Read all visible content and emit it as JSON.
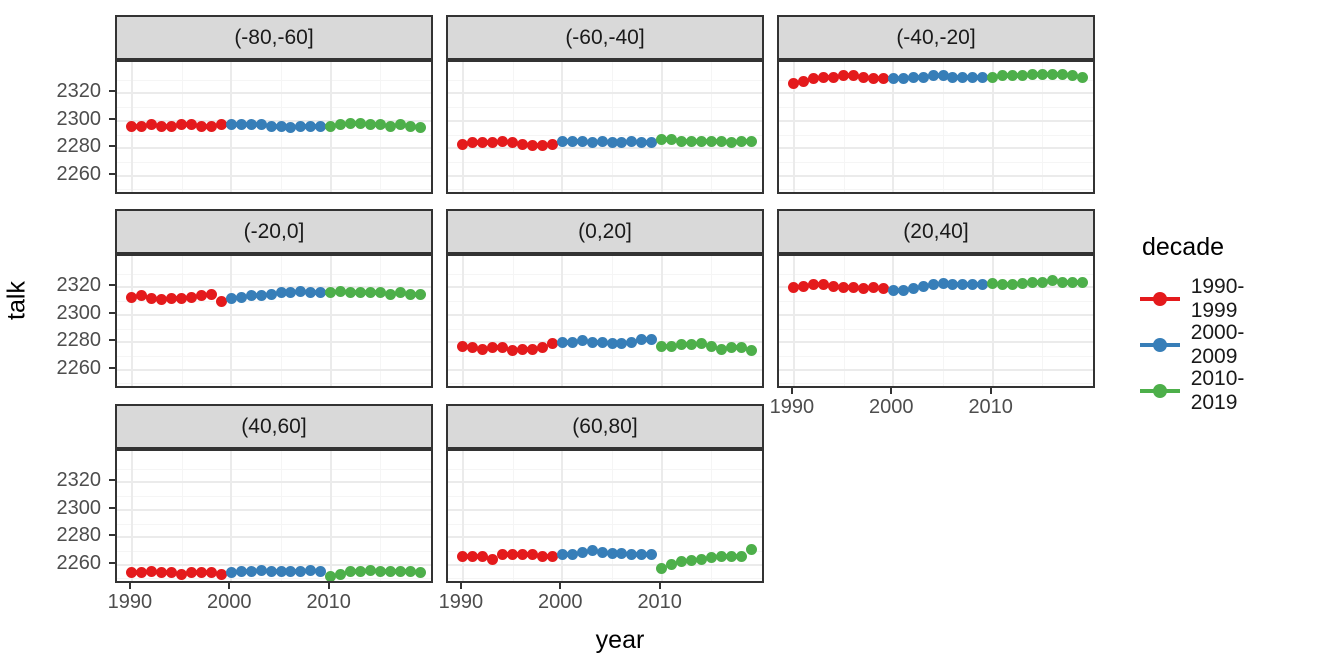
{
  "legend": {
    "title": "decade",
    "entries": [
      {
        "label": "1990-1999",
        "color": "#E41A1C"
      },
      {
        "label": "2000-2009",
        "color": "#377EB8"
      },
      {
        "label": "2010-2019",
        "color": "#4DAF4A"
      }
    ]
  },
  "chart_data": {
    "type": "scatter",
    "title": "",
    "xlabel": "year",
    "ylabel": "talk",
    "legend_position": "right",
    "grid": true,
    "x_ticks": [
      1990,
      2000,
      2010
    ],
    "x_minor_ticks": [
      1995,
      2005,
      2015
    ],
    "y_ticks": [
      2260,
      2280,
      2300,
      2320
    ],
    "y_minor_ticks": [
      2250,
      2270,
      2290,
      2310,
      2330
    ],
    "xlim": [
      1988.5,
      2020.5
    ],
    "ylim": [
      2245,
      2343
    ],
    "x_start_year": 1990,
    "series_names": [
      "1990-1999",
      "2000-2009",
      "2010-2019"
    ],
    "facets": [
      {
        "label": "(-80,-60]",
        "row": 0,
        "col": 0,
        "values": [
          2296,
          2296,
          2297,
          2296,
          2296,
          2297,
          2297,
          2296,
          2296,
          2297,
          2297,
          2297,
          2297,
          2297,
          2296,
          2296,
          2295,
          2296,
          2296,
          2296,
          2296,
          2297,
          2298,
          2298,
          2297,
          2297,
          2296,
          2297,
          2296,
          2295
        ]
      },
      {
        "label": "(-60,-40]",
        "row": 0,
        "col": 1,
        "values": [
          2283,
          2284,
          2284,
          2284,
          2285,
          2284,
          2283,
          2282,
          2282,
          2283,
          2285,
          2285,
          2285,
          2284,
          2285,
          2284,
          2284,
          2285,
          2284,
          2284,
          2286,
          2286,
          2285,
          2285,
          2285,
          2285,
          2285,
          2284,
          2285,
          2285
        ]
      },
      {
        "label": "(-40,-20]",
        "row": 0,
        "col": 2,
        "values": [
          2327,
          2329,
          2331,
          2332,
          2332,
          2333,
          2333,
          2332,
          2331,
          2331,
          2331,
          2331,
          2332,
          2332,
          2333,
          2333,
          2332,
          2332,
          2332,
          2332,
          2332,
          2333,
          2333,
          2333,
          2334,
          2334,
          2334,
          2334,
          2333,
          2332
        ]
      },
      {
        "label": "(-20,0]",
        "row": 1,
        "col": 0,
        "values": [
          2313,
          2314,
          2312,
          2311,
          2312,
          2312,
          2313,
          2314,
          2315,
          2310,
          2312,
          2313,
          2314,
          2314,
          2315,
          2316,
          2316,
          2317,
          2316,
          2316,
          2316,
          2317,
          2316,
          2316,
          2316,
          2316,
          2315,
          2316,
          2315,
          2315
        ]
      },
      {
        "label": "(0,20]",
        "row": 1,
        "col": 1,
        "values": [
          2277,
          2276,
          2275,
          2276,
          2276,
          2274,
          2275,
          2275,
          2276,
          2279,
          2280,
          2280,
          2281,
          2280,
          2280,
          2279,
          2279,
          2280,
          2282,
          2282,
          2277,
          2277,
          2278,
          2278,
          2279,
          2277,
          2275,
          2276,
          2276,
          2274
        ]
      },
      {
        "label": "(20,40]",
        "row": 1,
        "col": 2,
        "values": [
          2320,
          2321,
          2322,
          2322,
          2321,
          2320,
          2320,
          2319,
          2320,
          2319,
          2318,
          2318,
          2319,
          2321,
          2322,
          2323,
          2322,
          2322,
          2322,
          2322,
          2323,
          2322,
          2322,
          2323,
          2324,
          2324,
          2325,
          2324,
          2324,
          2324
        ]
      },
      {
        "label": "(40,60]",
        "row": 2,
        "col": 0,
        "values": [
          2254,
          2254,
          2255,
          2254,
          2254,
          2253,
          2254,
          2254,
          2254,
          2253,
          2254,
          2255,
          2255,
          2256,
          2255,
          2255,
          2255,
          2255,
          2256,
          2255,
          2251,
          2253,
          2255,
          2255,
          2256,
          2255,
          2255,
          2255,
          2255,
          2254
        ]
      },
      {
        "label": "(60,80]",
        "row": 2,
        "col": 1,
        "values": [
          2266,
          2266,
          2266,
          2264,
          2267,
          2267,
          2267,
          2267,
          2266,
          2266,
          2267,
          2267,
          2269,
          2270,
          2269,
          2268,
          2268,
          2267,
          2267,
          2267,
          2257,
          2260,
          2262,
          2263,
          2264,
          2265,
          2266,
          2266,
          2266,
          2271
        ]
      }
    ]
  }
}
